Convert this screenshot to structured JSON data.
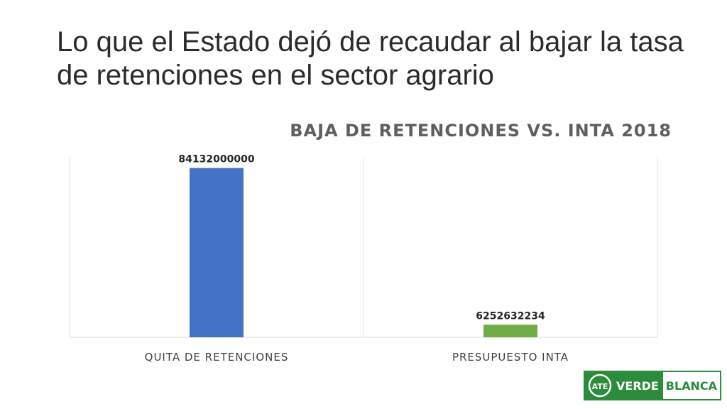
{
  "slide": {
    "title": "Lo que el Estado dejó de recaudar al bajar la tasa de retenciones en el sector agrario"
  },
  "chart_data": {
    "type": "bar",
    "title": "BAJA DE RETENCIONES VS. INTA 2018",
    "categories": [
      "QUITA DE RETENCIONES",
      "PRESUPUESTO INTA"
    ],
    "values": [
      84132000000,
      6252632234
    ],
    "data_labels": [
      "84132000000",
      "6252632234"
    ],
    "bar_colors": [
      "#4472c4",
      "#70ad47"
    ],
    "xlabel": "",
    "ylabel": "",
    "ylim": [
      0,
      90000000000
    ],
    "grid": false,
    "legend": "none"
  },
  "logo": {
    "emblem_text": "ATE",
    "word_verde": "VERDE",
    "word_blanca": "BLANCA",
    "brand_color": "#2c8c3c"
  }
}
